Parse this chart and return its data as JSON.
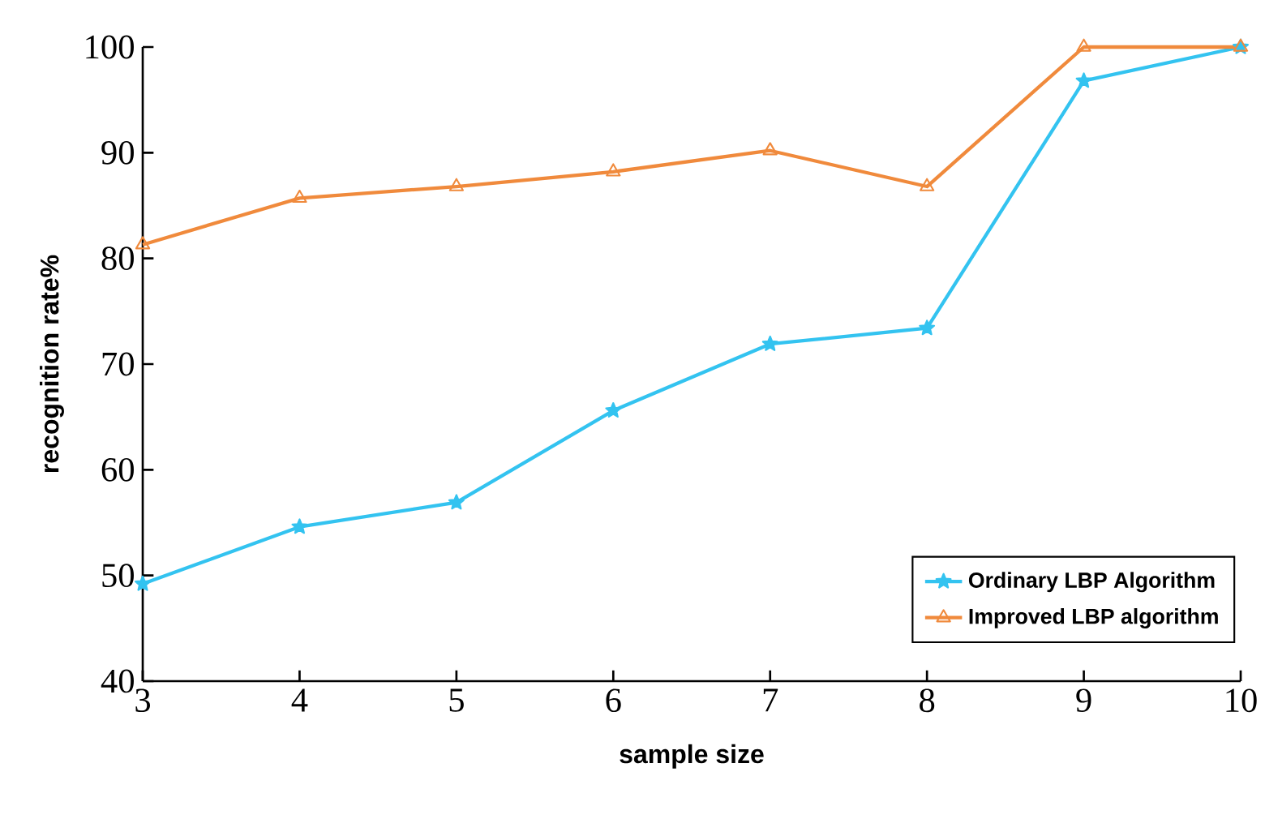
{
  "chart_data": {
    "type": "line",
    "xlabel": "sample size",
    "ylabel": "recognition rate%",
    "x": [
      3,
      4,
      5,
      6,
      7,
      8,
      9,
      10
    ],
    "series": [
      {
        "name": "Ordinary LBP Algorithm",
        "color": "#33c3f0",
        "marker": "star",
        "values": [
          49.2,
          54.6,
          56.9,
          65.6,
          71.9,
          73.4,
          96.8,
          100
        ]
      },
      {
        "name": "Improved LBP algorithm",
        "color": "#f08a3c",
        "marker": "triangle",
        "values": [
          81.3,
          85.7,
          86.8,
          88.2,
          90.2,
          86.8,
          100,
          100
        ]
      }
    ],
    "xlim": [
      3,
      10
    ],
    "ylim": [
      40,
      100
    ],
    "xticks": [
      3,
      4,
      5,
      6,
      7,
      8,
      9,
      10
    ],
    "yticks": [
      40,
      50,
      60,
      70,
      80,
      90,
      100
    ],
    "legend": "bottom right",
    "grid": false
  }
}
